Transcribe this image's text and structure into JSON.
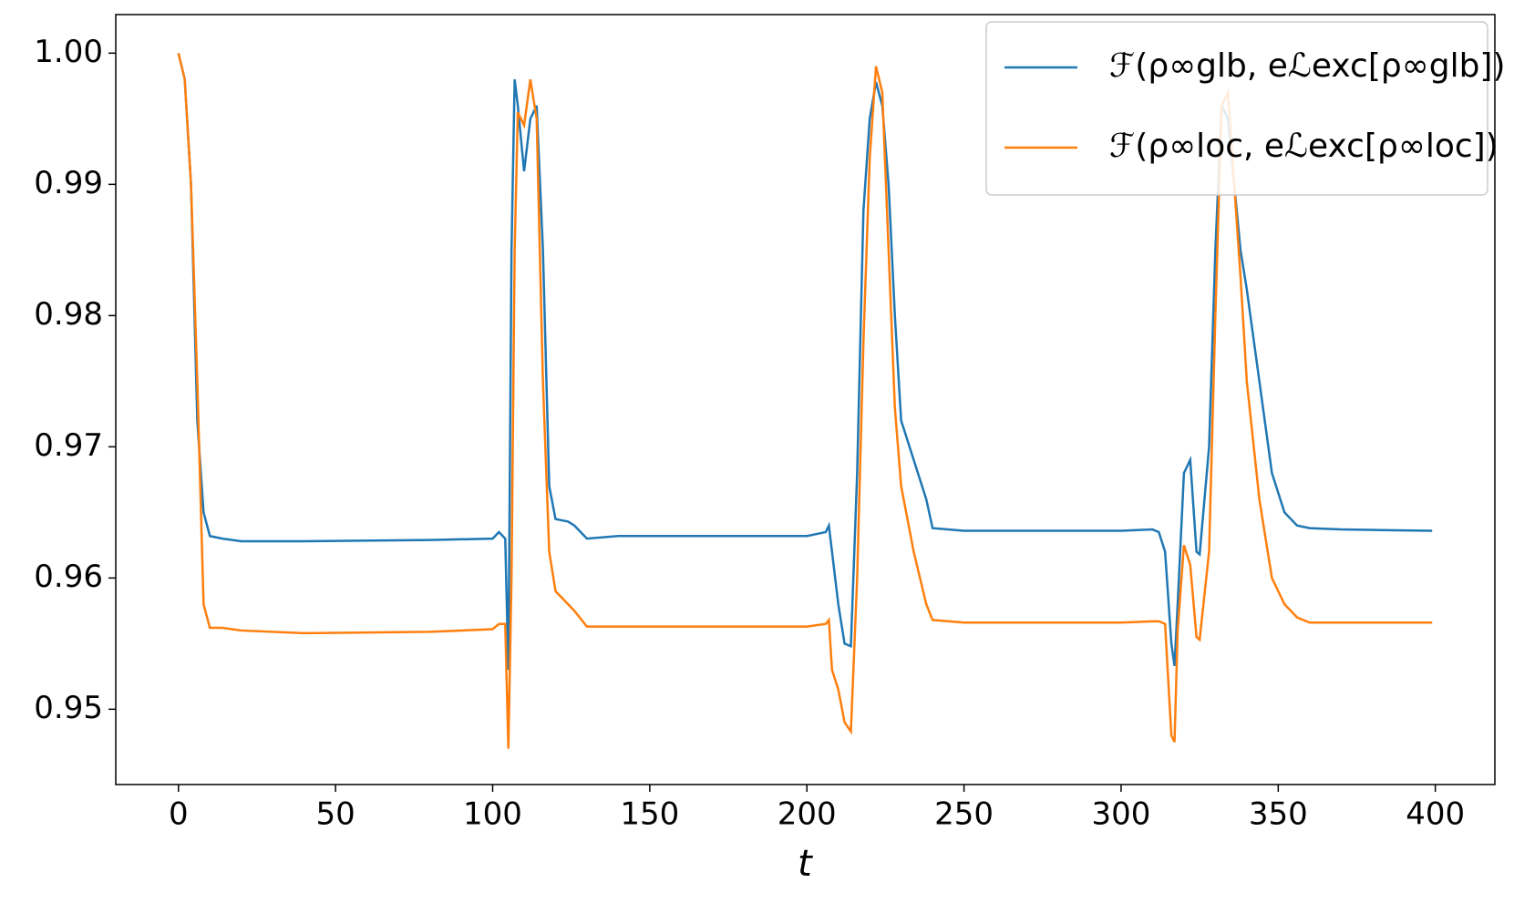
{
  "chart_data": {
    "type": "line",
    "xlabel": "t",
    "x": [
      0,
      2,
      4,
      6,
      8,
      10,
      14,
      20,
      40,
      80,
      100,
      102,
      104,
      105,
      106,
      107,
      108,
      110,
      112,
      114,
      116,
      118,
      120,
      124,
      126,
      130,
      140,
      200,
      206,
      207,
      208,
      210,
      212,
      214,
      216,
      218,
      220,
      222,
      224,
      226,
      228,
      230,
      234,
      238,
      240,
      250,
      300,
      310,
      312,
      314,
      316,
      317,
      318,
      320,
      322,
      324,
      325,
      328,
      330,
      332,
      334,
      336,
      338,
      340,
      344,
      348,
      352,
      356,
      360,
      370,
      399
    ],
    "series": [
      {
        "name": "ℱ(ρ∞glb, eℒexc[ρ∞glb])",
        "color": "#1f77b4",
        "values": [
          1.0,
          0.998,
          0.99,
          0.972,
          0.965,
          0.9632,
          0.963,
          0.9628,
          0.9628,
          0.9629,
          0.963,
          0.9635,
          0.963,
          0.953,
          0.985,
          0.998,
          0.996,
          0.991,
          0.995,
          0.996,
          0.985,
          0.967,
          0.9645,
          0.9643,
          0.964,
          0.963,
          0.9632,
          0.9632,
          0.9635,
          0.964,
          0.962,
          0.958,
          0.955,
          0.9548,
          0.968,
          0.988,
          0.995,
          0.9978,
          0.996,
          0.99,
          0.98,
          0.972,
          0.969,
          0.966,
          0.9638,
          0.9636,
          0.9636,
          0.9637,
          0.9635,
          0.962,
          0.955,
          0.9533,
          0.958,
          0.968,
          0.969,
          0.962,
          0.9618,
          0.97,
          0.985,
          0.996,
          0.995,
          0.99,
          0.985,
          0.982,
          0.975,
          0.968,
          0.965,
          0.964,
          0.9638,
          0.9637,
          0.9636
        ]
      },
      {
        "name": "ℱ(ρ∞loc, eℒexc[ρ∞loc])",
        "color": "#ff7f0e",
        "values": [
          1.0,
          0.998,
          0.99,
          0.975,
          0.958,
          0.9562,
          0.9562,
          0.956,
          0.9558,
          0.9559,
          0.9561,
          0.9565,
          0.9565,
          0.947,
          0.96,
          0.985,
          0.9955,
          0.9945,
          0.998,
          0.995,
          0.975,
          0.962,
          0.959,
          0.958,
          0.9575,
          0.9563,
          0.9563,
          0.9563,
          0.9565,
          0.9568,
          0.953,
          0.9515,
          0.949,
          0.9483,
          0.96,
          0.978,
          0.992,
          0.999,
          0.997,
          0.985,
          0.973,
          0.967,
          0.962,
          0.958,
          0.9568,
          0.9566,
          0.9566,
          0.9567,
          0.9567,
          0.9565,
          0.948,
          0.9475,
          0.956,
          0.9625,
          0.961,
          0.9555,
          0.9553,
          0.962,
          0.98,
          0.996,
          0.997,
          0.99,
          0.983,
          0.975,
          0.966,
          0.96,
          0.958,
          0.957,
          0.9566,
          0.9566,
          0.9566
        ]
      }
    ],
    "xlim": [
      -19.95,
      418.95
    ],
    "ylim": [
      0.94426,
      1.00294
    ],
    "xticks": [
      0,
      50,
      100,
      150,
      200,
      250,
      300,
      350,
      400
    ],
    "yticks": [
      {
        "value": 0.95,
        "label": "0.95"
      },
      {
        "value": 0.96,
        "label": "0.96"
      },
      {
        "value": 0.97,
        "label": "0.97"
      },
      {
        "value": 0.98,
        "label": "0.98"
      },
      {
        "value": 0.99,
        "label": "0.99"
      },
      {
        "value": 1.0,
        "label": "1.00"
      }
    ],
    "legend": "upper right"
  }
}
